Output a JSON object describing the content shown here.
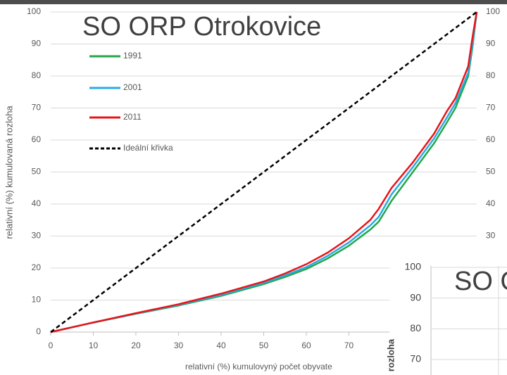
{
  "chart_data": [
    {
      "type": "line",
      "title": "SO ORP Otrokovice",
      "xlabel": "relativní (%) kumulovyný počet obyvate",
      "ylabel": "relativní (%) kumulovaná rozloha",
      "x": [
        0,
        10,
        20,
        30,
        40,
        50,
        55,
        60,
        65,
        70,
        75,
        77,
        80,
        85,
        90,
        93,
        95,
        98,
        99,
        100
      ],
      "xlim": [
        0,
        100
      ],
      "xticks": [
        0,
        10,
        20,
        30,
        40,
        50,
        60,
        70
      ],
      "ylim": [
        0,
        100
      ],
      "yticks": [
        0,
        10,
        20,
        30,
        40,
        50,
        60,
        70,
        80,
        90,
        100
      ],
      "grid": true,
      "legend": "upper left",
      "series": [
        {
          "name": "1991",
          "color": "#22a84a",
          "values": [
            0,
            3,
            5.7,
            8.3,
            11.3,
            15,
            17.2,
            19.7,
            23,
            27,
            32,
            34.5,
            41,
            50,
            59,
            65.5,
            70,
            80,
            89,
            100
          ]
        },
        {
          "name": "2001",
          "color": "#29abe2",
          "values": [
            0,
            3,
            5.8,
            8.5,
            11.6,
            15.4,
            17.7,
            20.3,
            23.8,
            28,
            33.3,
            36,
            43,
            51.5,
            60.5,
            67,
            71.5,
            81,
            90,
            100
          ]
        },
        {
          "name": "2011",
          "color": "#e8141b",
          "values": [
            0,
            3,
            5.9,
            8.7,
            12,
            15.8,
            18.3,
            21.2,
            24.8,
            29.3,
            35,
            38.5,
            45,
            53,
            62,
            69,
            73,
            83,
            92,
            100
          ]
        },
        {
          "name": "Ideální křivka",
          "color": "#000000",
          "dashed": true,
          "x": [
            0,
            100
          ],
          "values": [
            0,
            100
          ]
        }
      ]
    },
    {
      "type": "line",
      "ylim": [
        0,
        100
      ],
      "yticks": [
        30,
        40,
        50,
        60,
        70,
        80,
        90,
        100
      ]
    },
    {
      "type": "line",
      "title": "SO O",
      "ylabel": "rozloha",
      "ylim": [
        70,
        100
      ],
      "yticks": [
        70,
        80,
        90,
        100
      ],
      "grid": true
    }
  ]
}
